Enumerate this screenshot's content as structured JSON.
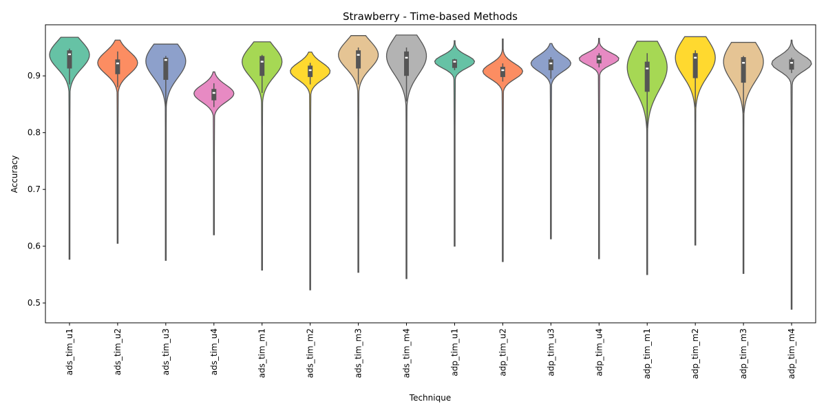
{
  "chart_data": {
    "type": "violin",
    "title": "Strawberry - Time-based Methods",
    "xlabel": "Technique",
    "ylabel": "Accuracy",
    "ylim": [
      0.465,
      0.99
    ],
    "yticks": [
      "0.5",
      "0.6",
      "0.7",
      "0.8",
      "0.9"
    ],
    "grid": false,
    "categories": [
      "ads_tim_u1",
      "ads_tim_u2",
      "ads_tim_u3",
      "ads_tim_u4",
      "ads_tim_m1",
      "ads_tim_m2",
      "ads_tim_m3",
      "ads_tim_m4",
      "adp_tim_u1",
      "adp_tim_u2",
      "adp_tim_u3",
      "adp_tim_u4",
      "adp_tim_m1",
      "adp_tim_m2",
      "adp_tim_m3",
      "adp_tim_m4"
    ],
    "colors": [
      "#66c2a5",
      "#fc8d62",
      "#8da0cb",
      "#e78ac3",
      "#a6d854",
      "#ffd92f",
      "#e5c494",
      "#b3b3b3",
      "#66c2a5",
      "#fc8d62",
      "#8da0cb",
      "#e78ac3",
      "#a6d854",
      "#ffd92f",
      "#e5c494",
      "#b3b3b3"
    ],
    "series": [
      {
        "min": 0.577,
        "q1": 0.913,
        "median": 0.938,
        "q3": 0.945,
        "max": 0.968,
        "peak": 0.937,
        "whisker_low": 0.885,
        "whisker_high": 0.948
      },
      {
        "min": 0.605,
        "q1": 0.903,
        "median": 0.922,
        "q3": 0.929,
        "max": 0.963,
        "peak": 0.923,
        "whisker_low": 0.88,
        "whisker_high": 0.943
      },
      {
        "min": 0.575,
        "q1": 0.893,
        "median": 0.928,
        "q3": 0.932,
        "max": 0.956,
        "peak": 0.926,
        "whisker_low": 0.845,
        "whisker_high": 0.935
      },
      {
        "min": 0.62,
        "q1": 0.857,
        "median": 0.87,
        "q3": 0.877,
        "max": 0.907,
        "peak": 0.869,
        "whisker_low": 0.845,
        "whisker_high": 0.887
      },
      {
        "min": 0.558,
        "q1": 0.9,
        "median": 0.925,
        "q3": 0.935,
        "max": 0.96,
        "peak": 0.925,
        "whisker_low": 0.87,
        "whisker_high": 0.937
      },
      {
        "min": 0.523,
        "q1": 0.898,
        "median": 0.91,
        "q3": 0.918,
        "max": 0.942,
        "peak": 0.908,
        "whisker_low": 0.885,
        "whisker_high": 0.923
      },
      {
        "min": 0.554,
        "q1": 0.913,
        "median": 0.937,
        "q3": 0.945,
        "max": 0.971,
        "peak": 0.937,
        "whisker_low": 0.885,
        "whisker_high": 0.95
      },
      {
        "min": 0.543,
        "q1": 0.9,
        "median": 0.932,
        "q3": 0.943,
        "max": 0.972,
        "peak": 0.935,
        "whisker_low": 0.855,
        "whisker_high": 0.95
      },
      {
        "min": 0.6,
        "q1": 0.914,
        "median": 0.925,
        "q3": 0.929,
        "max": 0.962,
        "peak": 0.925,
        "whisker_low": 0.91,
        "whisker_high": 0.93
      },
      {
        "min": 0.573,
        "q1": 0.898,
        "median": 0.91,
        "q3": 0.916,
        "max": 0.965,
        "peak": 0.908,
        "whisker_low": 0.89,
        "whisker_high": 0.922
      },
      {
        "min": 0.613,
        "q1": 0.91,
        "median": 0.922,
        "q3": 0.929,
        "max": 0.957,
        "peak": 0.922,
        "whisker_low": 0.895,
        "whisker_high": 0.933
      },
      {
        "min": 0.578,
        "q1": 0.922,
        "median": 0.93,
        "q3": 0.936,
        "max": 0.966,
        "peak": 0.93,
        "whisker_low": 0.915,
        "whisker_high": 0.94
      },
      {
        "min": 0.55,
        "q1": 0.872,
        "median": 0.913,
        "q3": 0.925,
        "max": 0.961,
        "peak": 0.915,
        "whisker_low": 0.808,
        "whisker_high": 0.94
      },
      {
        "min": 0.602,
        "q1": 0.896,
        "median": 0.932,
        "q3": 0.94,
        "max": 0.969,
        "peak": 0.932,
        "whisker_low": 0.845,
        "whisker_high": 0.945
      },
      {
        "min": 0.552,
        "q1": 0.888,
        "median": 0.923,
        "q3": 0.933,
        "max": 0.959,
        "peak": 0.925,
        "whisker_low": 0.835,
        "whisker_high": 0.935
      },
      {
        "min": 0.489,
        "q1": 0.911,
        "median": 0.923,
        "q3": 0.929,
        "max": 0.963,
        "peak": 0.922,
        "whisker_low": 0.905,
        "whisker_high": 0.932
      }
    ]
  }
}
